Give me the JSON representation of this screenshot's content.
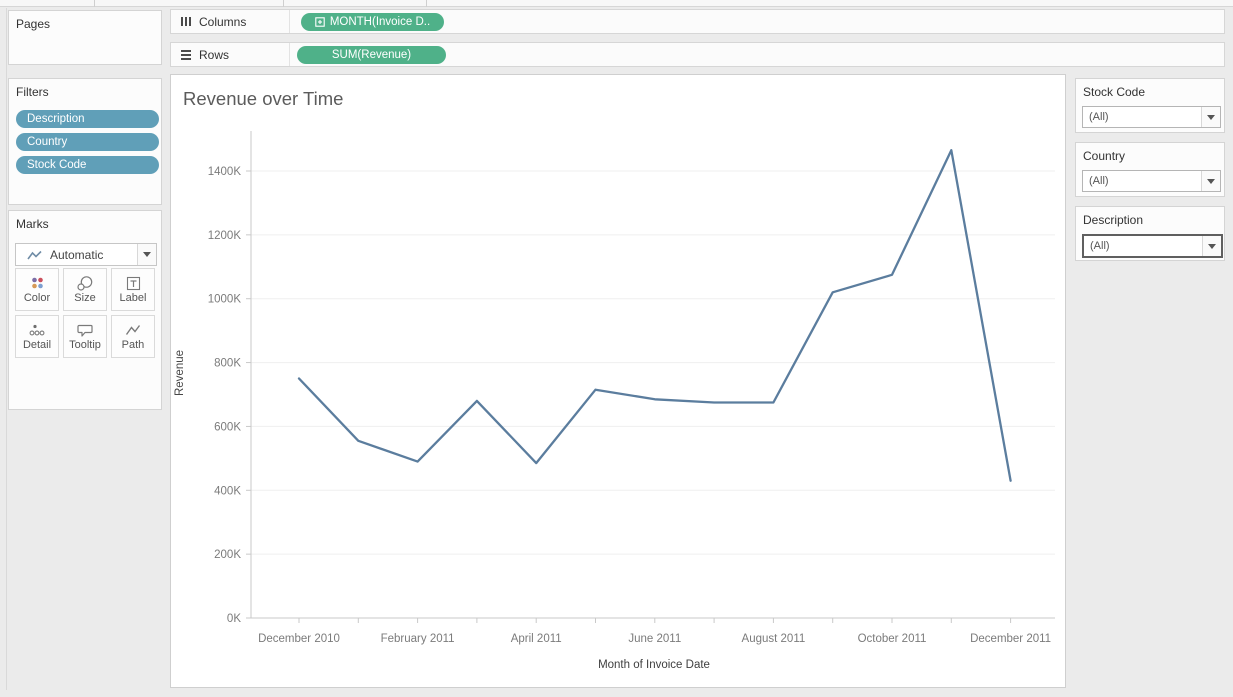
{
  "shelves": {
    "columns": {
      "label": "Columns",
      "pill": "MONTH(Invoice D.."
    },
    "rows": {
      "label": "Rows",
      "pill": "SUM(Revenue)"
    }
  },
  "left_panel": {
    "pages": {
      "title": "Pages"
    },
    "filters": {
      "title": "Filters",
      "pills": [
        "Description",
        "Country",
        "Stock Code"
      ]
    },
    "marks": {
      "title": "Marks",
      "mark_type": "Automatic",
      "buttons": [
        {
          "label": "Color"
        },
        {
          "label": "Size"
        },
        {
          "label": "Label"
        },
        {
          "label": "Detail"
        },
        {
          "label": "Tooltip"
        },
        {
          "label": "Path"
        }
      ]
    }
  },
  "right_panel": {
    "cards": [
      {
        "title": "Stock Code",
        "value": "(All)"
      },
      {
        "title": "Country",
        "value": "(All)"
      },
      {
        "title": "Description",
        "value": "(All)"
      }
    ]
  },
  "chart_data": {
    "type": "line",
    "title": "Revenue over Time",
    "xlabel": "Month of Invoice Date",
    "ylabel": "Revenue",
    "x": [
      "December 2010",
      "January 2011",
      "February 2011",
      "March 2011",
      "April 2011",
      "May 2011",
      "June 2011",
      "July 2011",
      "August 2011",
      "September 2011",
      "October 2011",
      "November 2011",
      "December 2011"
    ],
    "values_thousands": [
      750,
      555,
      490,
      680,
      485,
      715,
      685,
      675,
      675,
      1020,
      1075,
      1465,
      430
    ],
    "x_tick_labels": [
      "December 2010",
      "February 2011",
      "April 2011",
      "June 2011",
      "August 2011",
      "October 2011",
      "December 2011"
    ],
    "y_ticks": [
      "0K",
      "200K",
      "400K",
      "600K",
      "800K",
      "1000K",
      "1200K",
      "1400K"
    ],
    "ylim": [
      0,
      1400
    ],
    "grid": "horizontal",
    "legend": "none"
  },
  "colors": {
    "pill_green": "#4fb189",
    "pill_blue": "#609fb8",
    "line": "#5b7d9e"
  }
}
